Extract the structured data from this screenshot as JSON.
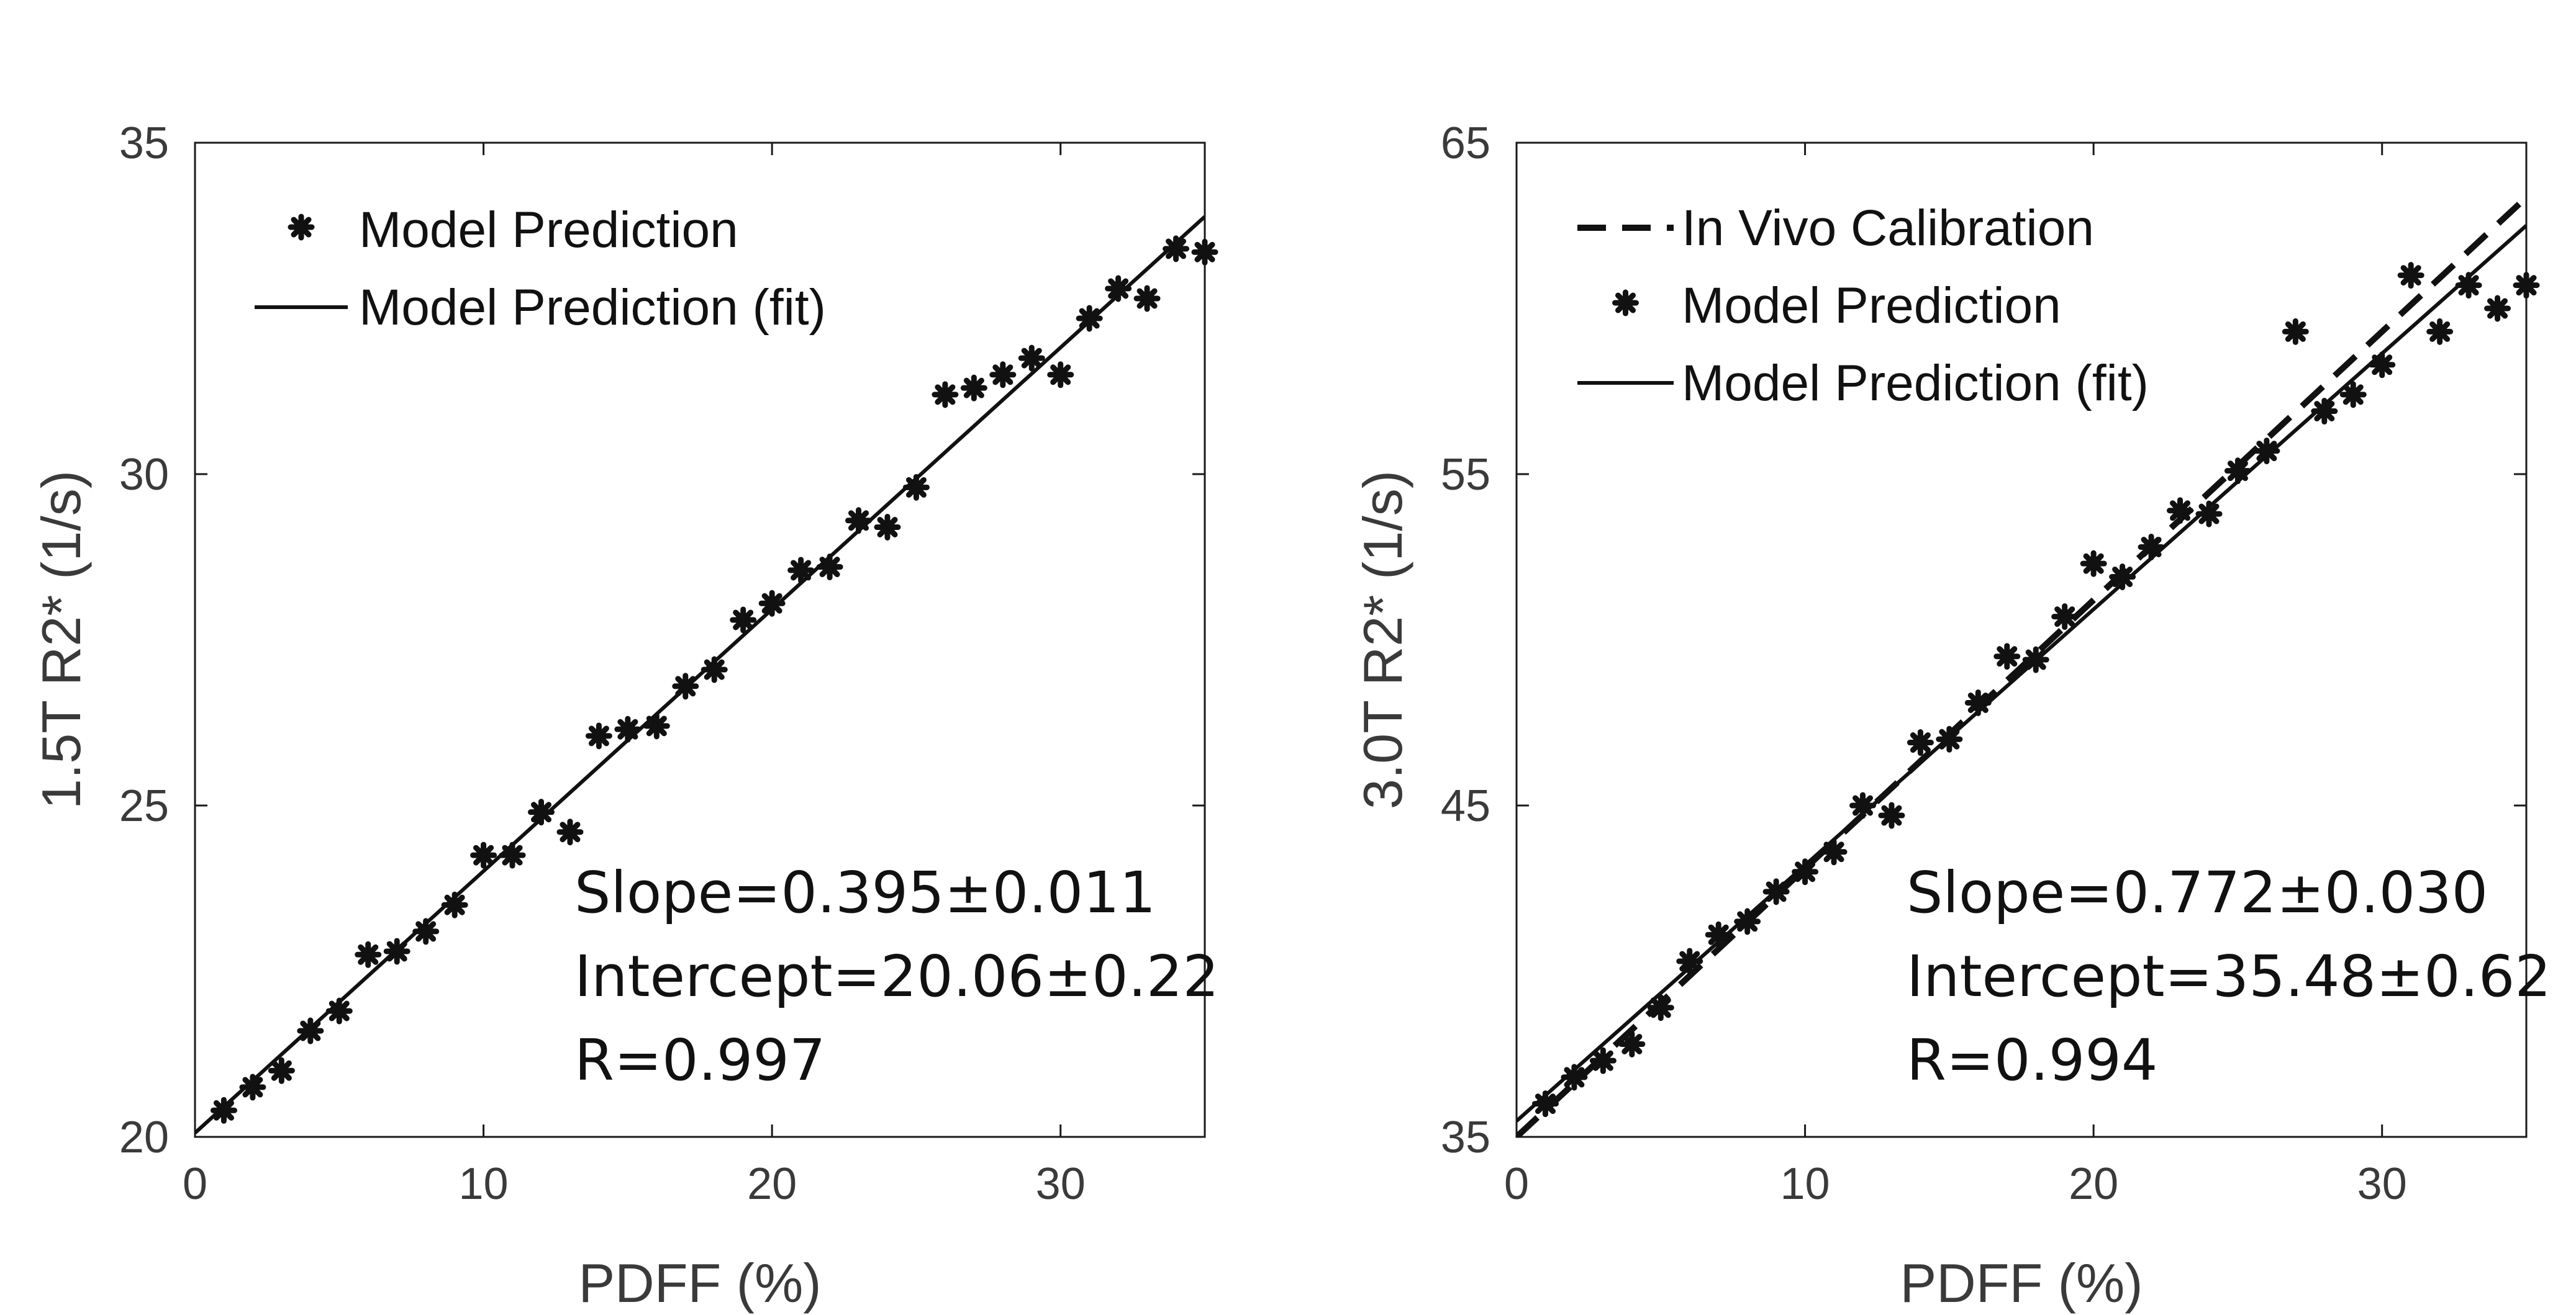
{
  "chart_data": [
    {
      "type": "scatter",
      "xlabel": "PDFF (%)",
      "ylabel": "1.5T R2* (1/s)",
      "xlim": [
        0,
        35
      ],
      "ylim": [
        20,
        35
      ],
      "xticks": [
        0,
        10,
        20,
        30
      ],
      "yticks": [
        20,
        25,
        30,
        35
      ],
      "xtick_labels": [
        "0",
        "10",
        "20",
        "30"
      ],
      "ytick_labels": [
        "20",
        "25",
        "30",
        "35"
      ],
      "legend_position": "top-left",
      "series": [
        {
          "name": "Model Prediction",
          "kind": "points",
          "color": "#111111",
          "x": [
            1,
            2,
            3,
            4,
            5,
            6,
            7,
            8,
            9,
            10,
            11,
            12,
            13,
            14,
            15,
            16,
            17,
            18,
            19,
            20,
            21,
            22,
            23,
            24,
            25,
            26,
            27,
            28,
            29,
            30,
            31,
            32,
            33,
            34,
            35
          ],
          "y": [
            20.4,
            20.75,
            21.0,
            21.6,
            21.9,
            22.75,
            22.8,
            23.1,
            23.5,
            24.25,
            24.25,
            24.9,
            24.6,
            26.05,
            26.15,
            26.2,
            26.8,
            27.05,
            27.8,
            28.05,
            28.55,
            28.6,
            29.3,
            29.2,
            29.8,
            31.2,
            31.3,
            31.5,
            31.75,
            31.5,
            32.35,
            32.8,
            32.65,
            33.4,
            33.35
          ]
        },
        {
          "name": "Model Prediction (fit)",
          "kind": "line",
          "color": "#111111",
          "dash": "solid",
          "slope": 0.395,
          "intercept": 20.06
        }
      ],
      "annotations": [
        "Slope=0.395±0.011",
        "Intercept=20.06±0.22",
        "R=0.997"
      ]
    },
    {
      "type": "scatter",
      "xlabel": "PDFF (%)",
      "ylabel": "3.0T R2* (1/s)",
      "xlim": [
        0,
        35
      ],
      "ylim": [
        35,
        65
      ],
      "xticks": [
        0,
        10,
        20,
        30
      ],
      "yticks": [
        35,
        45,
        55,
        65
      ],
      "xtick_labels": [
        "0",
        "10",
        "20",
        "30"
      ],
      "ytick_labels": [
        "35",
        "45",
        "55",
        "65"
      ],
      "legend_position": "top-left",
      "series": [
        {
          "name": "In Vivo Calibration",
          "kind": "line",
          "color": "#111111",
          "dash": "dashed",
          "slope": 0.81,
          "intercept": 35.0
        },
        {
          "name": "Model Prediction",
          "kind": "points",
          "color": "#111111",
          "x": [
            1,
            2,
            3,
            4,
            5,
            6,
            7,
            8,
            9,
            10,
            11,
            12,
            13,
            14,
            15,
            16,
            17,
            18,
            19,
            20,
            21,
            22,
            23,
            24,
            25,
            26,
            27,
            28,
            29,
            30,
            31,
            32,
            33,
            34,
            35
          ],
          "y": [
            36.0,
            36.8,
            37.3,
            37.8,
            38.9,
            40.3,
            41.1,
            41.5,
            42.4,
            43.0,
            43.6,
            45.0,
            44.7,
            46.9,
            47.0,
            48.1,
            49.5,
            49.4,
            50.7,
            52.3,
            51.9,
            52.8,
            53.9,
            53.8,
            55.1,
            55.7,
            59.3,
            56.9,
            57.4,
            58.3,
            61.0,
            59.3,
            60.7,
            60.0,
            60.7
          ]
        },
        {
          "name": "Model Prediction (fit)",
          "kind": "line",
          "color": "#111111",
          "dash": "solid",
          "slope": 0.772,
          "intercept": 35.48
        }
      ],
      "annotations": [
        "Slope=0.772±0.030",
        "Intercept=35.48±0.62",
        "R=0.994"
      ]
    }
  ]
}
